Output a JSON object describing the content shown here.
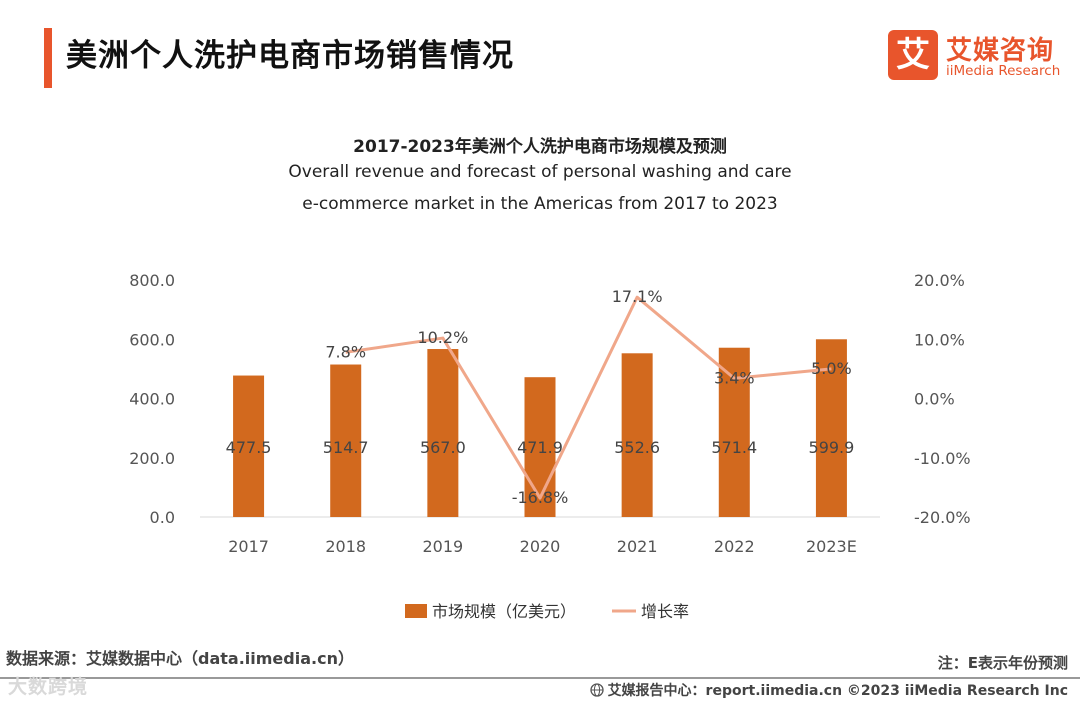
{
  "page_title": "美洲个人洗护电商市场销售情况",
  "logo": {
    "cn": "艾媒咨询",
    "en": "iiMedia Research",
    "mark": "艾"
  },
  "chart_title": {
    "zh": "2017-2023年美洲个人洗护电商市场规模及预测",
    "en_line1": "Overall revenue and forecast of personal washing and care",
    "en_line2": "e-commerce market in the Americas from 2017 to 2023"
  },
  "chart_data": {
    "type": "bar",
    "categories": [
      "2017",
      "2018",
      "2019",
      "2020",
      "2021",
      "2022",
      "2023E"
    ],
    "series": [
      {
        "name": "市场规模（亿美元）",
        "type": "bar",
        "axis": "left",
        "color": "#d2691e",
        "values": [
          477.5,
          514.7,
          567.0,
          471.9,
          552.6,
          571.4,
          599.9
        ],
        "labels": [
          "477.5",
          "514.7",
          "567.0",
          "471.9",
          "552.6",
          "571.4",
          "599.9"
        ]
      },
      {
        "name": "增长率",
        "type": "line",
        "axis": "right",
        "color": "#f0a78a",
        "values": [
          null,
          7.8,
          10.2,
          -16.8,
          17.1,
          3.4,
          5.0
        ],
        "labels": [
          "",
          "7.8%",
          "10.2%",
          "-16.8%",
          "17.1%",
          "3.4%",
          "5.0%"
        ]
      }
    ],
    "y_left": {
      "min": 0,
      "max": 800,
      "ticks": [
        "0.0",
        "200.0",
        "400.0",
        "600.0",
        "800.0"
      ]
    },
    "y_right": {
      "min": -20,
      "max": 20,
      "ticks": [
        "-20.0%",
        "-10.0%",
        "0.0%",
        "10.0%",
        "20.0%"
      ]
    },
    "legend": {
      "position": "bottom"
    }
  },
  "source": "数据来源：艾媒数据中心（data.iimedia.cn）",
  "note": "注：E表示年份预测",
  "watermark": "大数跨境",
  "footer": "艾媒报告中心：report.iimedia.cn  ©2023  iiMedia Research  Inc"
}
